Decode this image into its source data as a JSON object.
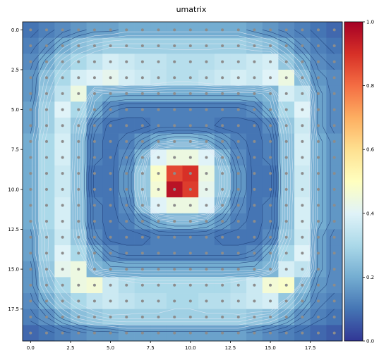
{
  "chart_data": {
    "type": "heatmap",
    "title": "umatrix",
    "xlabel": "",
    "ylabel": "",
    "grid_size": [
      20,
      20
    ],
    "xlim": [
      -0.5,
      19.5
    ],
    "ylim": [
      19.5,
      -0.5
    ],
    "x_ticks": [
      "0.0",
      "2.5",
      "5.0",
      "7.5",
      "10.0",
      "12.5",
      "15.0",
      "17.5"
    ],
    "x_tick_values": [
      0,
      2.5,
      5,
      7.5,
      10,
      12.5,
      15,
      17.5
    ],
    "y_ticks": [
      "0.0",
      "2.5",
      "5.0",
      "7.5",
      "10.0",
      "12.5",
      "15.0",
      "17.5"
    ],
    "y_tick_values": [
      0,
      2.5,
      5,
      7.5,
      10,
      12.5,
      15,
      17.5
    ],
    "colormap": "RdYlBu_r",
    "colorbar": {
      "range": [
        0,
        1
      ],
      "ticks": [
        "0.0",
        "0.2",
        "0.4",
        "0.6",
        "0.8",
        "1.0"
      ],
      "tick_values": [
        0,
        0.2,
        0.4,
        0.6,
        0.8,
        1.0
      ]
    },
    "values": [
      [
        0.1,
        0.12,
        0.14,
        0.16,
        0.18,
        0.18,
        0.2,
        0.2,
        0.2,
        0.2,
        0.2,
        0.2,
        0.2,
        0.2,
        0.18,
        0.16,
        0.14,
        0.12,
        0.1,
        0.08
      ],
      [
        0.12,
        0.15,
        0.2,
        0.24,
        0.26,
        0.28,
        0.28,
        0.28,
        0.28,
        0.28,
        0.28,
        0.28,
        0.28,
        0.28,
        0.26,
        0.24,
        0.2,
        0.15,
        0.12,
        0.1
      ],
      [
        0.14,
        0.2,
        0.26,
        0.3,
        0.34,
        0.38,
        0.36,
        0.34,
        0.34,
        0.32,
        0.32,
        0.32,
        0.34,
        0.34,
        0.36,
        0.38,
        0.26,
        0.2,
        0.14,
        0.12
      ],
      [
        0.16,
        0.24,
        0.3,
        0.38,
        0.4,
        0.42,
        0.38,
        0.36,
        0.34,
        0.32,
        0.32,
        0.34,
        0.36,
        0.38,
        0.36,
        0.4,
        0.44,
        0.24,
        0.16,
        0.14
      ],
      [
        0.16,
        0.26,
        0.34,
        0.44,
        0.22,
        0.2,
        0.2,
        0.2,
        0.2,
        0.2,
        0.2,
        0.2,
        0.2,
        0.2,
        0.2,
        0.22,
        0.38,
        0.34,
        0.18,
        0.14
      ],
      [
        0.18,
        0.28,
        0.4,
        0.3,
        0.2,
        0.14,
        0.12,
        0.12,
        0.12,
        0.12,
        0.12,
        0.12,
        0.12,
        0.12,
        0.14,
        0.2,
        0.3,
        0.4,
        0.18,
        0.14
      ],
      [
        0.18,
        0.28,
        0.36,
        0.26,
        0.14,
        0.1,
        0.1,
        0.1,
        0.12,
        0.12,
        0.12,
        0.12,
        0.1,
        0.1,
        0.1,
        0.14,
        0.26,
        0.36,
        0.18,
        0.14
      ],
      [
        0.2,
        0.3,
        0.38,
        0.24,
        0.12,
        0.1,
        0.12,
        0.16,
        0.2,
        0.22,
        0.22,
        0.2,
        0.16,
        0.12,
        0.1,
        0.12,
        0.24,
        0.38,
        0.2,
        0.16
      ],
      [
        0.2,
        0.3,
        0.38,
        0.24,
        0.12,
        0.1,
        0.14,
        0.22,
        0.4,
        0.44,
        0.44,
        0.4,
        0.22,
        0.14,
        0.1,
        0.12,
        0.24,
        0.38,
        0.2,
        0.16
      ],
      [
        0.2,
        0.3,
        0.36,
        0.24,
        0.1,
        0.1,
        0.16,
        0.26,
        0.48,
        0.86,
        0.9,
        0.44,
        0.26,
        0.16,
        0.1,
        0.1,
        0.24,
        0.36,
        0.2,
        0.16
      ],
      [
        0.2,
        0.3,
        0.36,
        0.24,
        0.1,
        0.1,
        0.16,
        0.26,
        0.46,
        0.96,
        0.88,
        0.42,
        0.26,
        0.16,
        0.1,
        0.1,
        0.24,
        0.36,
        0.2,
        0.16
      ],
      [
        0.2,
        0.3,
        0.38,
        0.24,
        0.12,
        0.1,
        0.14,
        0.24,
        0.4,
        0.44,
        0.44,
        0.4,
        0.22,
        0.14,
        0.1,
        0.12,
        0.24,
        0.38,
        0.2,
        0.16
      ],
      [
        0.2,
        0.3,
        0.38,
        0.24,
        0.12,
        0.1,
        0.12,
        0.16,
        0.2,
        0.22,
        0.22,
        0.2,
        0.16,
        0.12,
        0.1,
        0.12,
        0.24,
        0.38,
        0.2,
        0.16
      ],
      [
        0.18,
        0.28,
        0.36,
        0.26,
        0.14,
        0.1,
        0.1,
        0.1,
        0.12,
        0.12,
        0.12,
        0.12,
        0.1,
        0.1,
        0.1,
        0.14,
        0.26,
        0.36,
        0.18,
        0.14
      ],
      [
        0.18,
        0.28,
        0.4,
        0.3,
        0.2,
        0.14,
        0.12,
        0.12,
        0.12,
        0.12,
        0.12,
        0.12,
        0.12,
        0.12,
        0.14,
        0.2,
        0.3,
        0.4,
        0.18,
        0.14
      ],
      [
        0.16,
        0.26,
        0.42,
        0.44,
        0.22,
        0.2,
        0.2,
        0.2,
        0.2,
        0.2,
        0.2,
        0.2,
        0.2,
        0.2,
        0.2,
        0.22,
        0.38,
        0.34,
        0.18,
        0.14
      ],
      [
        0.16,
        0.24,
        0.3,
        0.44,
        0.46,
        0.36,
        0.32,
        0.3,
        0.3,
        0.3,
        0.3,
        0.3,
        0.3,
        0.32,
        0.36,
        0.46,
        0.48,
        0.24,
        0.16,
        0.14
      ],
      [
        0.14,
        0.2,
        0.26,
        0.3,
        0.34,
        0.36,
        0.34,
        0.32,
        0.32,
        0.3,
        0.3,
        0.32,
        0.32,
        0.34,
        0.36,
        0.38,
        0.26,
        0.2,
        0.14,
        0.12
      ],
      [
        0.12,
        0.15,
        0.2,
        0.24,
        0.26,
        0.28,
        0.28,
        0.28,
        0.28,
        0.28,
        0.28,
        0.28,
        0.28,
        0.28,
        0.26,
        0.24,
        0.2,
        0.15,
        0.12,
        0.1
      ],
      [
        0.08,
        0.1,
        0.12,
        0.14,
        0.16,
        0.16,
        0.18,
        0.18,
        0.18,
        0.18,
        0.18,
        0.18,
        0.18,
        0.18,
        0.16,
        0.14,
        0.12,
        0.1,
        0.08,
        0.06
      ]
    ],
    "markers": "grey dot at every cell center"
  }
}
